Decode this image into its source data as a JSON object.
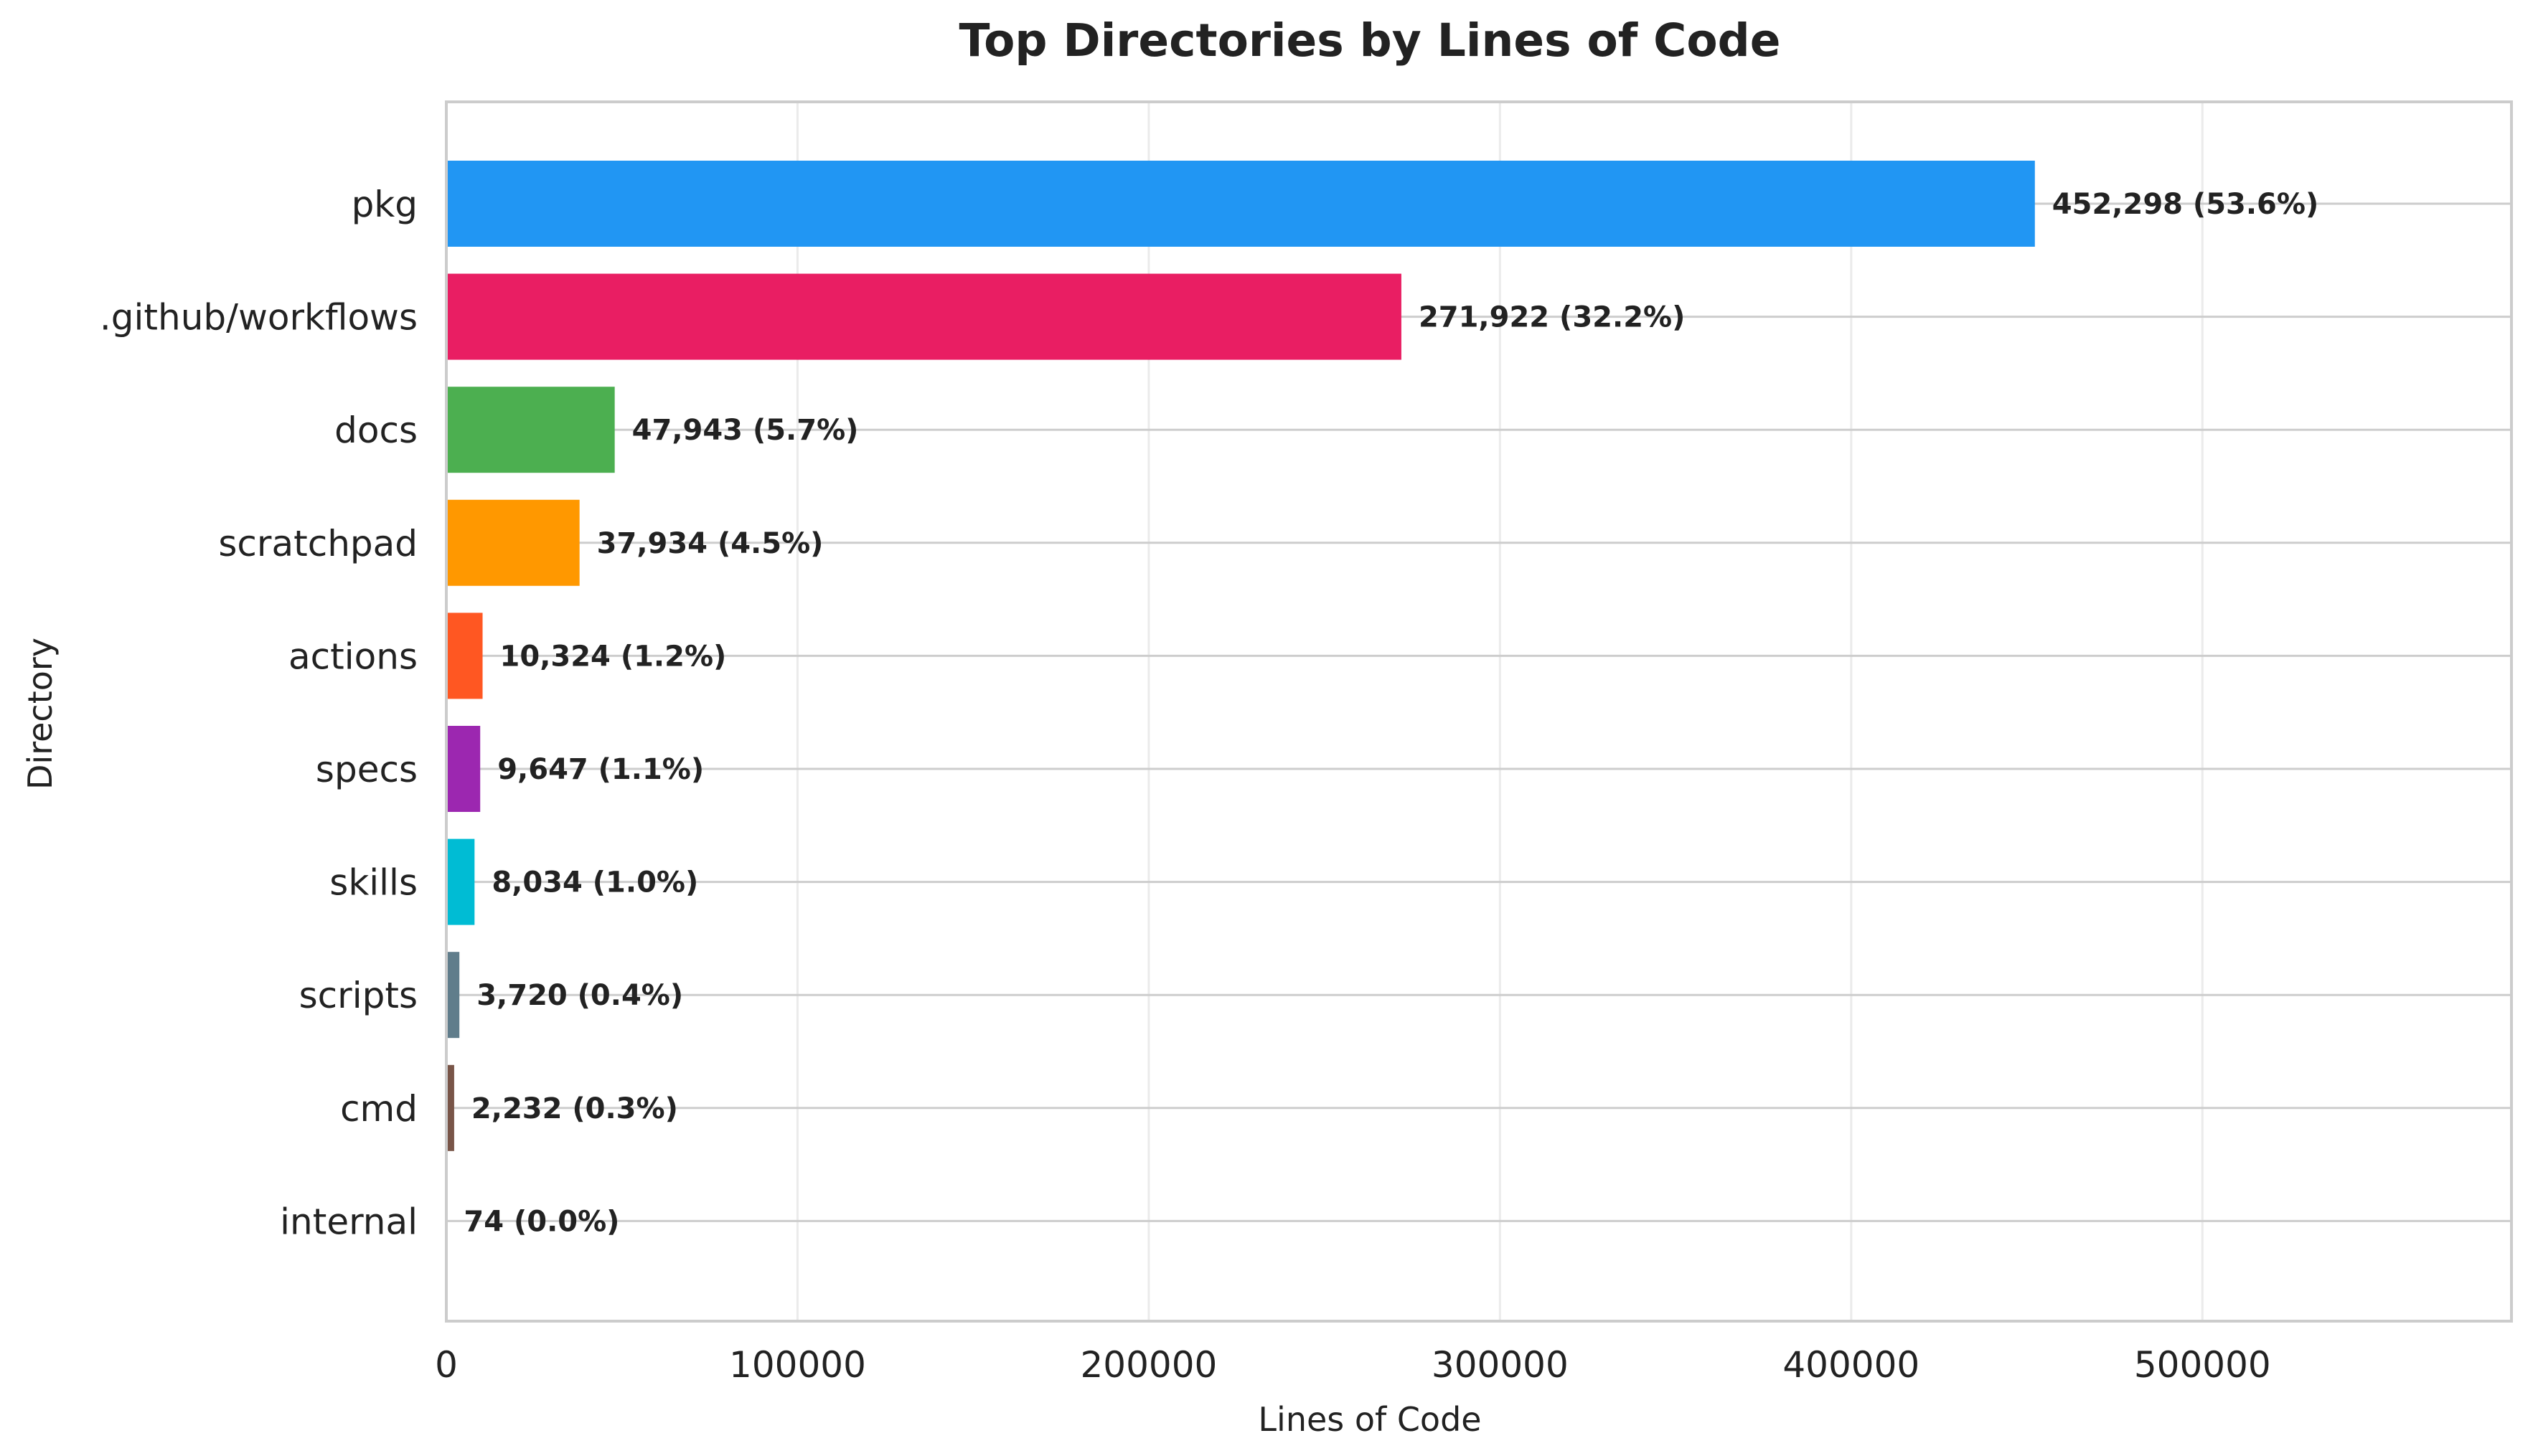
{
  "chart_data": {
    "type": "bar",
    "orientation": "horizontal",
    "title": "Top Directories by Lines of Code",
    "xlabel": "Lines of Code",
    "ylabel": "Directory",
    "xlim": [
      0,
      588000
    ],
    "xticks": [
      0,
      100000,
      200000,
      300000,
      400000,
      500000
    ],
    "xtick_labels": [
      "0",
      "100000",
      "200000",
      "300000",
      "400000",
      "500000"
    ],
    "grid": true,
    "categories": [
      "pkg",
      ".github/workflows",
      "docs",
      "scratchpad",
      "actions",
      "specs",
      "skills",
      "scripts",
      "cmd",
      "internal"
    ],
    "values": [
      452298,
      271922,
      47943,
      37934,
      10324,
      9647,
      8034,
      3720,
      2232,
      74
    ],
    "data_labels": [
      "452,298 (53.6%)",
      "271,922 (32.2%)",
      "47,943 (5.7%)",
      "37,934 (4.5%)",
      "10,324 (1.2%)",
      "9,647 (1.1%)",
      "8,034 (1.0%)",
      "3,720 (0.4%)",
      "2,232 (0.3%)",
      "74 (0.0%)"
    ],
    "colors": [
      "#2196F3",
      "#E91E63",
      "#4CAF50",
      "#FF9800",
      "#FF5722",
      "#9C27B0",
      "#00BCD4",
      "#607D8B",
      "#795548",
      "#8D6E63"
    ]
  }
}
